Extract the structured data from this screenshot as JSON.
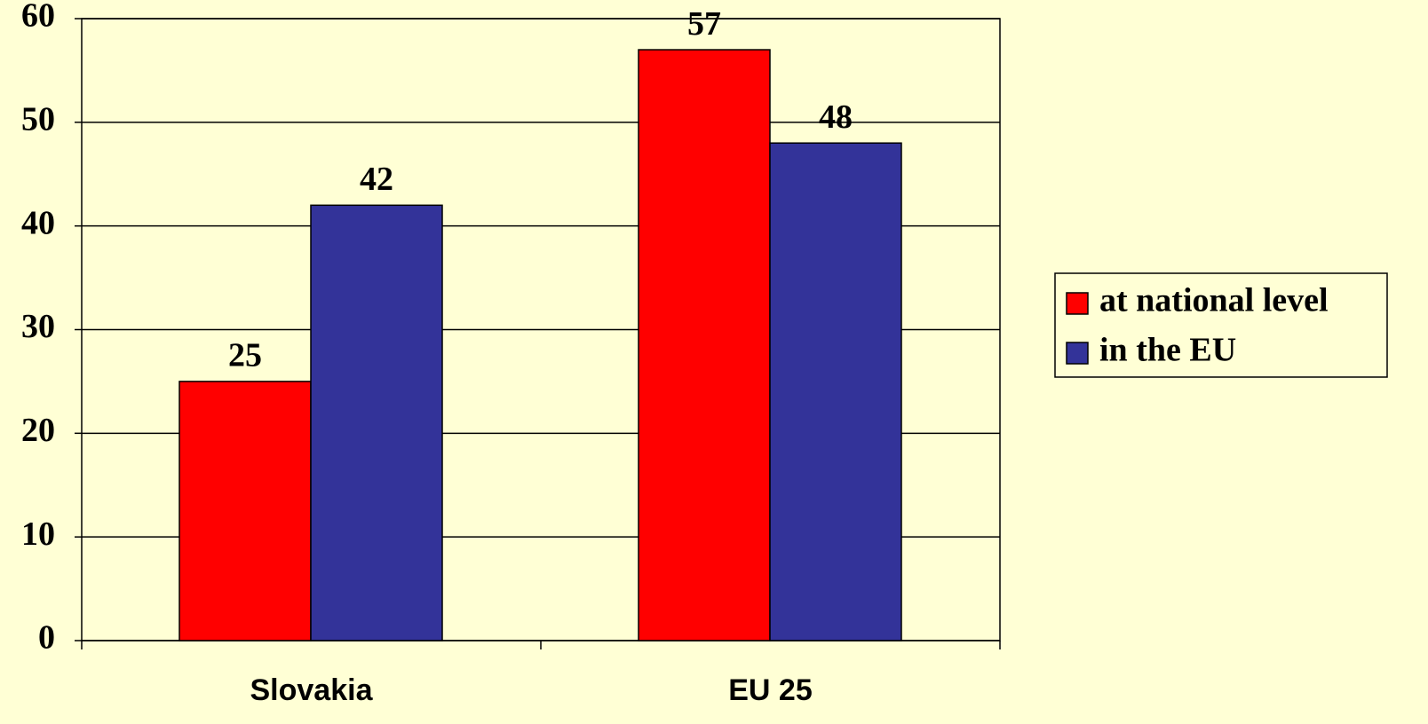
{
  "chart_data": {
    "type": "bar",
    "categories": [
      "Slovakia",
      "EU 25"
    ],
    "series": [
      {
        "name": "at national level",
        "color": "#ff0000",
        "values": [
          25,
          57
        ]
      },
      {
        "name": "in the EU",
        "color": "#333399",
        "values": [
          42,
          48
        ]
      }
    ],
    "ylim": [
      0,
      60
    ],
    "yticks": [
      0,
      10,
      20,
      30,
      40,
      50,
      60
    ],
    "grid": true,
    "legend": "right"
  }
}
